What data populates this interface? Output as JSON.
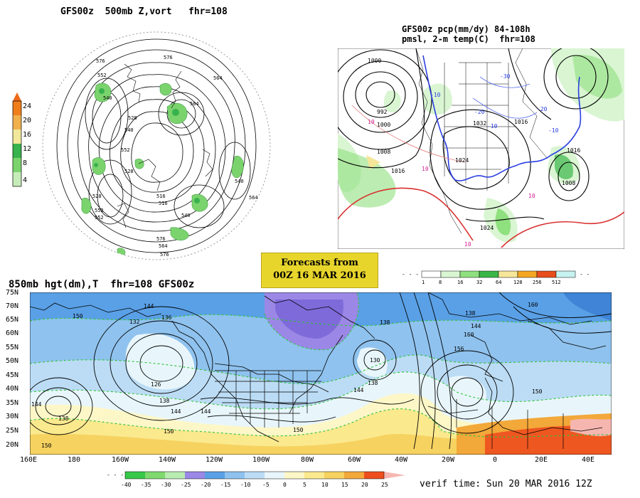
{
  "panels": {
    "polar": {
      "title": "GFS00z  500mb Z,vort   fhr=108",
      "legend_labels": [
        "24",
        "20",
        "16",
        "12",
        "8",
        "4"
      ],
      "legend_colors": [
        "#f07e1b",
        "#f0b04c",
        "#f2e79a",
        "#37b24d",
        "#7bd36d",
        "#c7ecb9"
      ],
      "contour_labels": [
        "576",
        "564",
        "552",
        "540",
        "528",
        "516",
        "576",
        "564",
        "552",
        "540",
        "528",
        "540",
        "564",
        "576",
        "552",
        "564",
        "576",
        "528",
        "516",
        "540",
        "552"
      ]
    },
    "precip": {
      "title_line1": "GFS00z pcp(mm/dy) 84-108h",
      "title_line2": "pmsl, 2-m temp(C)  fhr=108",
      "isobar_labels": [
        "1000",
        "992",
        "1000",
        "1008",
        "1016",
        "1024",
        "1032",
        "1016",
        "1008",
        "1016",
        "1024"
      ],
      "temp_labels": [
        "10",
        "10",
        "10",
        "-10",
        "-20",
        "-30",
        "-10",
        "-20",
        "-10",
        "10"
      ],
      "scale_labels": [
        "1",
        "8",
        "16",
        "32",
        "64",
        "128",
        "256",
        "512"
      ],
      "scale_colors": [
        "#ffffff",
        "#d9f5d2",
        "#8fe07f",
        "#3ab649",
        "#f5e69a",
        "#f5a623",
        "#e84d1c",
        "#c6f2f0"
      ]
    },
    "banner": {
      "line1": "Forecasts from",
      "line2": "00Z 16 MAR 2016"
    },
    "main": {
      "title": "850mb hgt(dm),T  fhr=108 GFS00z",
      "lat_labels": [
        "75N",
        "70N",
        "65N",
        "60N",
        "55N",
        "50N",
        "45N",
        "40N",
        "35N",
        "30N",
        "25N",
        "20N"
      ],
      "lon_labels": [
        "160E",
        "180",
        "160W",
        "140W",
        "120W",
        "100W",
        "80W",
        "60W",
        "40W",
        "20W",
        "0",
        "20E",
        "40E"
      ],
      "height_labels": [
        "150",
        "144",
        "132",
        "136",
        "126",
        "138",
        "144",
        "150",
        "138",
        "144",
        "138",
        "150",
        "150",
        "144",
        "138",
        "130",
        "144",
        "138",
        "160",
        "156",
        "150",
        "144",
        "160"
      ],
      "temp_scale_labels": [
        "-40",
        "-35",
        "-30",
        "-25",
        "-20",
        "-15",
        "-10",
        "-5",
        "0",
        "5",
        "10",
        "15",
        "20",
        "25"
      ],
      "temp_scale_colors": [
        "#37c84a",
        "#7fd96f",
        "#b8ecb0",
        "#9b88e6",
        "#5aa0e6",
        "#8fc2ee",
        "#bcdcf5",
        "#e8f6fb",
        "#fdf7c8",
        "#fbe98e",
        "#f6d260",
        "#f3a83a",
        "#ee4e1e",
        "#f6b6b0"
      ],
      "verif_time": "verif time: Sun 20 MAR 2016 12Z"
    }
  }
}
